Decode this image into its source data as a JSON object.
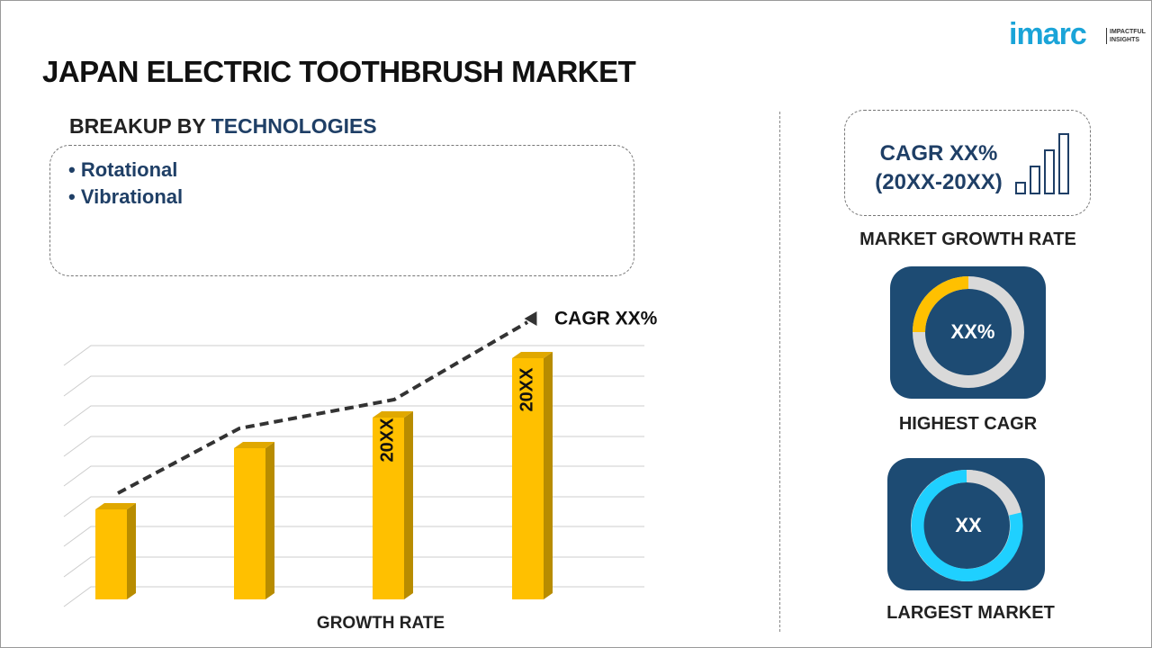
{
  "logo": {
    "brand": "imarc",
    "tagline_1": "IMPACTFUL",
    "tagline_2": "INSIGHTS"
  },
  "title": "JAPAN ELECTRIC TOOTHBRUSH MARKET",
  "breakup": {
    "prefix": "BREAKUP BY",
    "topic": "TECHNOLOGIES",
    "items": [
      "Rotational",
      "Vibrational"
    ]
  },
  "growth_chart": {
    "trend_label": "CAGR XX%",
    "bar_labels": [
      "20XX",
      "20XX"
    ],
    "axis_label": "GROWTH RATE"
  },
  "cagr_card": {
    "line_1": "CAGR XX%",
    "line_2": "(20XX-20XX)",
    "caption": "MARKET GROWTH RATE"
  },
  "highest_cagr": {
    "value": "XX%",
    "caption": "HIGHEST CAGR"
  },
  "largest_market": {
    "value": "XX",
    "caption": "LARGEST MARKET"
  }
}
